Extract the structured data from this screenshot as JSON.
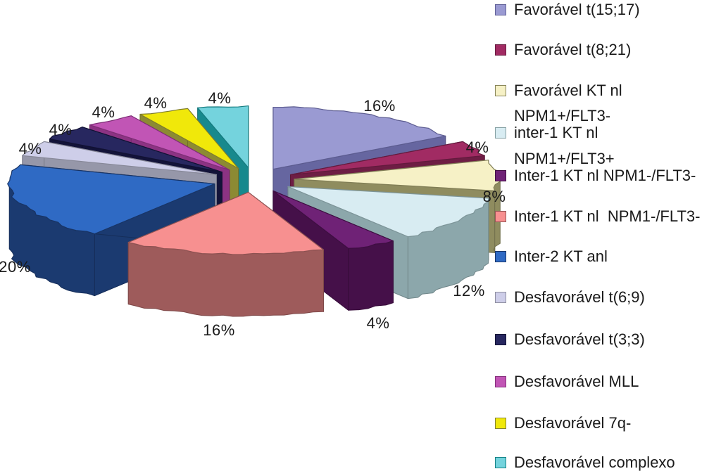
{
  "chart_data": {
    "type": "pie",
    "style": "3d-exploded",
    "title": "",
    "unit": "%",
    "total": 100,
    "start_angle_deg": -90,
    "direction": "clockwise",
    "legend_position": "right",
    "background_color": "#ffffff",
    "text_color": "#1a1a1a",
    "slices": [
      {
        "name": "Favorável t(15;17)",
        "value": 16,
        "pct_label": "16%",
        "color": "#9a9ad2",
        "side_color": "#6666a0"
      },
      {
        "name": "Favorável t(8;21)",
        "value": 4,
        "pct_label": "4%",
        "color": "#a12b63",
        "side_color": "#6e1d44"
      },
      {
        "name": "Favorável KT nl",
        "value": 8,
        "pct_label": "8%",
        "color": "#f6f1c6",
        "side_color": "#8f8c5f"
      },
      {
        "name": "inter-1 KT nl",
        "pre_line": "NPM1+/FLT3-",
        "value": 12,
        "pct_label": "12%",
        "color": "#d8ecf2",
        "side_color": "#8ca7ab"
      },
      {
        "name": "Inter-1 KT nl NPM1-/FLT3-",
        "pre_line": "NPM1+/FLT3+",
        "value": 4,
        "pct_label": "4%",
        "color": "#6f2276",
        "side_color": "#451049"
      },
      {
        "name": "Inter-1 KT nl  NPM1-/FLT3-",
        "value": 16,
        "pct_label": "16%",
        "color": "#f79090",
        "side_color": "#9e5b5b"
      },
      {
        "name": "Inter-2 KT anl",
        "value": 20,
        "pct_label": "20%",
        "color": "#2f6ac4",
        "side_color": "#1b3a70"
      },
      {
        "name": "Desfavorável t(6;9)",
        "value": 4,
        "pct_label": "4%",
        "color": "#cecee9",
        "side_color": "#9697a9"
      },
      {
        "name": "Desfavorável t(3;3)",
        "value": 4,
        "pct_label": "4%",
        "color": "#27275f",
        "side_color": "#131339"
      },
      {
        "name": "Desfavorável MLL",
        "value": 4,
        "pct_label": "4%",
        "color": "#c155b5",
        "side_color": "#8c3383"
      },
      {
        "name": "Desfavorável 7q-",
        "value": 4,
        "pct_label": "4%",
        "color": "#f0e80a",
        "side_color": "#8c8a33"
      },
      {
        "name": "Desfavorável complexo",
        "value": 4,
        "pct_label": "4%",
        "color": "#74d3dd",
        "side_color": "#17898d"
      }
    ]
  }
}
